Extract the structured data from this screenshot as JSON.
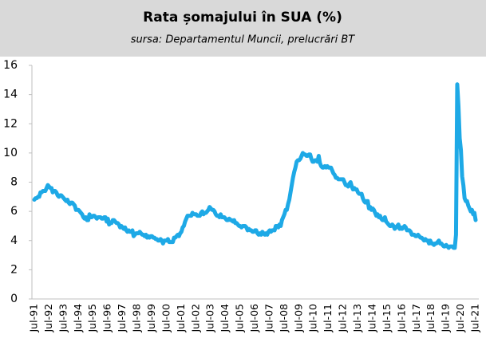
{
  "chart_data": {
    "type": "line",
    "title": "Rata șomajului în SUA (%)",
    "subtitle": "sursa: Departamentul Muncii, prelucrări BT",
    "categories": [
      "Jul-91",
      null,
      null,
      null,
      null,
      null,
      null,
      null,
      null,
      null,
      null,
      null,
      "Jul-92",
      null,
      null,
      null,
      null,
      null,
      null,
      null,
      null,
      null,
      null,
      null,
      "Jul-93",
      null,
      null,
      null,
      null,
      null,
      null,
      null,
      null,
      null,
      null,
      null,
      "Jul-94",
      null,
      null,
      null,
      null,
      null,
      null,
      null,
      null,
      null,
      null,
      null,
      "Jul-95",
      null,
      null,
      null,
      null,
      null,
      null,
      null,
      null,
      null,
      null,
      null,
      "Jul-96",
      null,
      null,
      null,
      null,
      null,
      null,
      null,
      null,
      null,
      null,
      null,
      "Jul-97",
      null,
      null,
      null,
      null,
      null,
      null,
      null,
      null,
      null,
      null,
      null,
      "Jul-98",
      null,
      null,
      null,
      null,
      null,
      null,
      null,
      null,
      null,
      null,
      null,
      "Jul-99",
      null,
      null,
      null,
      null,
      null,
      null,
      null,
      null,
      null,
      null,
      null,
      "Jul-00",
      null,
      null,
      null,
      null,
      null,
      null,
      null,
      null,
      null,
      null,
      null,
      "Jul-01",
      null,
      null,
      null,
      null,
      null,
      null,
      null,
      null,
      null,
      null,
      null,
      "Jul-02",
      null,
      null,
      null,
      null,
      null,
      null,
      null,
      null,
      null,
      null,
      null,
      "Jul-03",
      null,
      null,
      null,
      null,
      null,
      null,
      null,
      null,
      null,
      null,
      null,
      "Jul-04",
      null,
      null,
      null,
      null,
      null,
      null,
      null,
      null,
      null,
      null,
      null,
      "Jul-05",
      null,
      null,
      null,
      null,
      null,
      null,
      null,
      null,
      null,
      null,
      null,
      "Jul-06",
      null,
      null,
      null,
      null,
      null,
      null,
      null,
      null,
      null,
      null,
      null,
      "Jul-07",
      null,
      null,
      null,
      null,
      null,
      null,
      null,
      null,
      null,
      null,
      null,
      "Jul-08",
      null,
      null,
      null,
      null,
      null,
      null,
      null,
      null,
      null,
      null,
      null,
      "Jul-09",
      null,
      null,
      null,
      null,
      null,
      null,
      null,
      null,
      null,
      null,
      null,
      "Jul-10",
      null,
      null,
      null,
      null,
      null,
      null,
      null,
      null,
      null,
      null,
      null,
      "Jul-11",
      null,
      null,
      null,
      null,
      null,
      null,
      null,
      null,
      null,
      null,
      null,
      "Jul-12",
      null,
      null,
      null,
      null,
      null,
      null,
      null,
      null,
      null,
      null,
      null,
      "Jul-13",
      null,
      null,
      null,
      null,
      null,
      null,
      null,
      null,
      null,
      null,
      null,
      "Jul-14",
      null,
      null,
      null,
      null,
      null,
      null,
      null,
      null,
      null,
      null,
      null,
      "Jul-15",
      null,
      null,
      null,
      null,
      null,
      null,
      null,
      null,
      null,
      null,
      null,
      "Jul-16",
      null,
      null,
      null,
      null,
      null,
      null,
      null,
      null,
      null,
      null,
      null,
      "Jul-17",
      null,
      null,
      null,
      null,
      null,
      null,
      null,
      null,
      null,
      null,
      null,
      "Jul-18",
      null,
      null,
      null,
      null,
      null,
      null,
      null,
      null,
      null,
      null,
      null,
      "Jul-19",
      null,
      null,
      null,
      null,
      null,
      null,
      null,
      null,
      null,
      null,
      null,
      "Jul-20",
      null,
      null,
      null,
      null,
      null,
      null,
      null,
      null,
      null,
      null,
      null,
      "Jul-21"
    ],
    "values": [
      6.8,
      6.9,
      6.9,
      7.0,
      7.0,
      7.3,
      7.3,
      7.4,
      7.4,
      7.4,
      7.6,
      7.8,
      7.7,
      7.6,
      7.6,
      7.3,
      7.4,
      7.4,
      7.3,
      7.1,
      7.0,
      7.1,
      7.1,
      7.0,
      6.9,
      6.8,
      6.7,
      6.8,
      6.6,
      6.5,
      6.6,
      6.6,
      6.5,
      6.4,
      6.1,
      6.1,
      6.1,
      6.0,
      5.9,
      5.8,
      5.6,
      5.5,
      5.6,
      5.4,
      5.4,
      5.8,
      5.6,
      5.6,
      5.7,
      5.7,
      5.6,
      5.5,
      5.6,
      5.6,
      5.6,
      5.5,
      5.5,
      5.6,
      5.6,
      5.3,
      5.5,
      5.1,
      5.2,
      5.2,
      5.4,
      5.4,
      5.3,
      5.2,
      5.2,
      5.1,
      4.9,
      5.0,
      4.9,
      4.8,
      4.9,
      4.7,
      4.6,
      4.7,
      4.6,
      4.6,
      4.7,
      4.3,
      4.4,
      4.5,
      4.5,
      4.5,
      4.6,
      4.5,
      4.4,
      4.4,
      4.3,
      4.4,
      4.2,
      4.3,
      4.2,
      4.3,
      4.3,
      4.2,
      4.2,
      4.1,
      4.1,
      4.0,
      4.0,
      4.1,
      4.0,
      3.8,
      4.0,
      4.0,
      4.0,
      4.1,
      3.9,
      3.9,
      3.9,
      3.9,
      4.2,
      4.2,
      4.3,
      4.4,
      4.3,
      4.5,
      4.6,
      4.9,
      5.0,
      5.3,
      5.5,
      5.7,
      5.7,
      5.7,
      5.7,
      5.9,
      5.8,
      5.8,
      5.8,
      5.7,
      5.7,
      5.7,
      5.9,
      6.0,
      5.8,
      5.9,
      5.9,
      6.0,
      6.1,
      6.3,
      6.2,
      6.1,
      6.1,
      6.0,
      5.8,
      5.7,
      5.7,
      5.6,
      5.8,
      5.6,
      5.6,
      5.6,
      5.5,
      5.4,
      5.4,
      5.5,
      5.4,
      5.4,
      5.3,
      5.4,
      5.2,
      5.2,
      5.1,
      5.0,
      5.0,
      4.9,
      5.0,
      5.0,
      5.0,
      4.9,
      4.7,
      4.8,
      4.7,
      4.7,
      4.6,
      4.6,
      4.7,
      4.7,
      4.5,
      4.4,
      4.5,
      4.4,
      4.6,
      4.5,
      4.4,
      4.5,
      4.4,
      4.6,
      4.7,
      4.6,
      4.7,
      4.7,
      4.7,
      5.0,
      5.0,
      4.9,
      5.1,
      5.0,
      5.4,
      5.6,
      5.8,
      6.1,
      6.1,
      6.5,
      6.8,
      7.3,
      7.8,
      8.3,
      8.7,
      9.0,
      9.4,
      9.5,
      9.5,
      9.6,
      9.8,
      10.0,
      9.9,
      9.9,
      9.8,
      9.8,
      9.9,
      9.9,
      9.6,
      9.4,
      9.4,
      9.5,
      9.5,
      9.4,
      9.8,
      9.3,
      9.1,
      9.0,
      9.0,
      9.1,
      9.0,
      9.1,
      9.0,
      9.0,
      9.0,
      8.8,
      8.6,
      8.5,
      8.3,
      8.3,
      8.2,
      8.2,
      8.2,
      8.2,
      8.2,
      8.0,
      7.8,
      7.8,
      7.7,
      7.9,
      8.0,
      7.7,
      7.5,
      7.6,
      7.5,
      7.5,
      7.3,
      7.2,
      7.2,
      7.2,
      6.9,
      6.7,
      6.6,
      6.7,
      6.7,
      6.2,
      6.3,
      6.1,
      6.2,
      6.1,
      5.9,
      5.7,
      5.8,
      5.6,
      5.7,
      5.5,
      5.4,
      5.4,
      5.6,
      5.3,
      5.2,
      5.1,
      5.0,
      5.0,
      5.1,
      5.0,
      4.8,
      4.9,
      5.0,
      5.1,
      4.8,
      4.9,
      4.8,
      4.9,
      5.0,
      4.9,
      4.7,
      4.7,
      4.7,
      4.6,
      4.4,
      4.4,
      4.4,
      4.3,
      4.3,
      4.4,
      4.3,
      4.2,
      4.2,
      4.1,
      4.0,
      4.1,
      4.0,
      4.0,
      3.8,
      4.0,
      3.8,
      3.8,
      3.7,
      3.8,
      3.8,
      3.9,
      4.0,
      3.8,
      3.8,
      3.7,
      3.6,
      3.6,
      3.7,
      3.6,
      3.5,
      3.6,
      3.6,
      3.6,
      3.5,
      3.5,
      4.4,
      14.7,
      13.2,
      11.0,
      10.2,
      8.4,
      7.8,
      6.9,
      6.7,
      6.7,
      6.4,
      6.2,
      6.0,
      6.1,
      5.8,
      5.9,
      5.4
    ],
    "color": "#1ea9e6",
    "ylim": [
      0,
      16
    ],
    "yticks": [
      0,
      2,
      4,
      6,
      8,
      10,
      12,
      14,
      16
    ],
    "grid": false
  }
}
